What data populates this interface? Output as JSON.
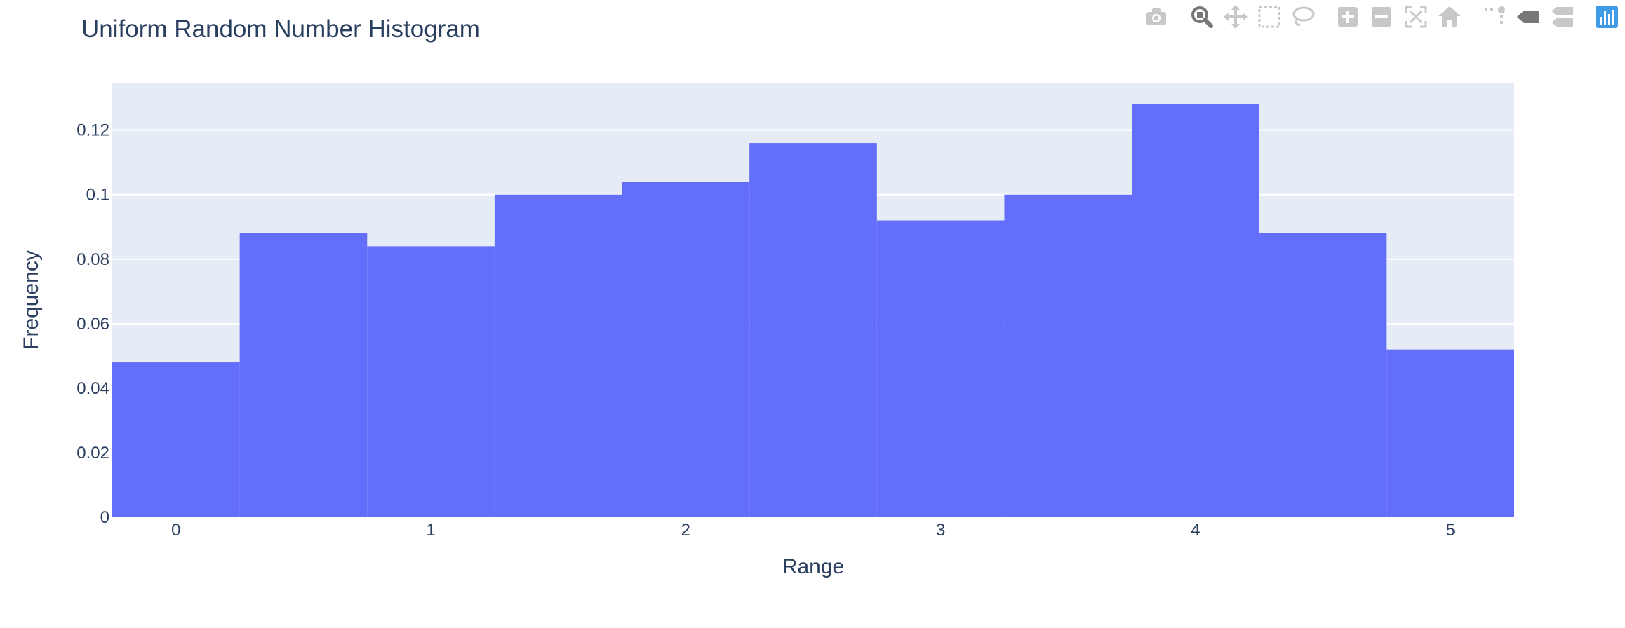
{
  "colors": {
    "plot_bg": "#e5ecf6",
    "bar": "#636efa",
    "grid": "#ffffff",
    "text": "#2a3f5f",
    "modebar_icon": "#c8c8c8",
    "modebar_active": "#777777",
    "modebar_logo": "#3f9ae8"
  },
  "modebar": {
    "buttons": [
      {
        "icon": "camera-icon"
      },
      {
        "icon": "zoom-icon"
      },
      {
        "icon": "pan-icon"
      },
      {
        "icon": "box-select-icon"
      },
      {
        "icon": "lasso-icon"
      },
      {
        "icon": "zoom-in-icon"
      },
      {
        "icon": "zoom-out-icon"
      },
      {
        "icon": "autoscale-icon"
      },
      {
        "icon": "reset-axes-icon"
      },
      {
        "icon": "spike-lines-icon"
      },
      {
        "icon": "hover-closest-icon"
      },
      {
        "icon": "hover-compare-icon"
      },
      {
        "icon": "plotly-logo-icon"
      }
    ]
  },
  "chart_data": {
    "type": "bar",
    "title": "Uniform Random Number Histogram",
    "xlabel": "Range",
    "ylabel": "Frequency",
    "bin_width": 0.5,
    "bin_starts": [
      -0.25,
      0.25,
      0.75,
      1.25,
      1.75,
      2.25,
      2.75,
      3.25,
      3.75,
      4.25,
      4.75
    ],
    "values": [
      0.048,
      0.088,
      0.084,
      0.1,
      0.104,
      0.116,
      0.092,
      0.1,
      0.128,
      0.088,
      0.052
    ],
    "xlim": [
      -0.25,
      5.25
    ],
    "ylim": [
      0,
      0.1347
    ],
    "xticks": [
      0,
      1,
      2,
      3,
      4,
      5
    ],
    "xtick_labels": [
      "0",
      "1",
      "2",
      "3",
      "4",
      "5"
    ],
    "yticks": [
      0,
      0.02,
      0.04,
      0.06,
      0.08,
      0.1,
      0.12
    ],
    "ytick_labels": [
      "0",
      "0.02",
      "0.04",
      "0.06",
      "0.08",
      "0.1",
      "0.12"
    ],
    "grid": true,
    "legend": "none"
  }
}
